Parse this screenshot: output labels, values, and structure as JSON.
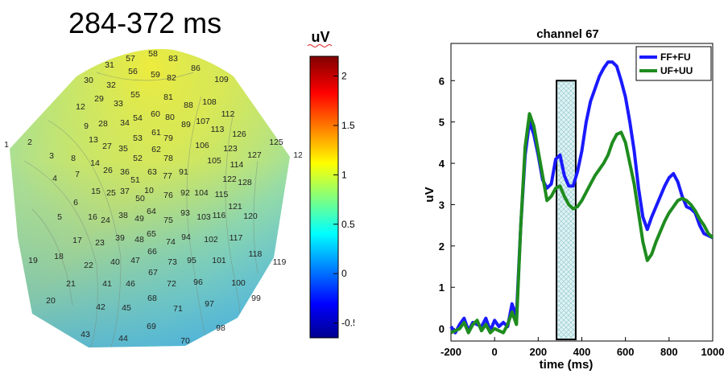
{
  "map_title": "284-372 ms",
  "colorbar": {
    "unit": "uV",
    "ticks": [
      "2",
      "1.5",
      "1",
      "0.5",
      "0",
      "-0.5"
    ],
    "tick_values": [
      2,
      1.5,
      1,
      0.5,
      0,
      -0.5
    ],
    "range": [
      -0.65,
      2.2
    ]
  },
  "electrodes": [
    {
      "label": "57"
    },
    {
      "label": "58"
    },
    {
      "label": "83"
    },
    {
      "label": "86"
    },
    {
      "label": "31"
    },
    {
      "label": "56"
    },
    {
      "label": "59"
    },
    {
      "label": "82"
    },
    {
      "label": "109"
    },
    {
      "label": "30"
    },
    {
      "label": "32"
    },
    {
      "label": "55"
    },
    {
      "label": "29"
    },
    {
      "label": "33"
    },
    {
      "label": "81"
    },
    {
      "label": "108"
    },
    {
      "label": "88"
    },
    {
      "label": "12"
    },
    {
      "label": "60"
    },
    {
      "label": "54"
    },
    {
      "label": "112"
    },
    {
      "label": "28"
    },
    {
      "label": "34"
    },
    {
      "label": "80"
    },
    {
      "label": "89"
    },
    {
      "label": "107"
    },
    {
      "label": "113"
    },
    {
      "label": "126"
    },
    {
      "label": "9"
    },
    {
      "label": "61"
    },
    {
      "label": "53"
    },
    {
      "label": "79"
    },
    {
      "label": "13"
    },
    {
      "label": "27"
    },
    {
      "label": "2"
    },
    {
      "label": "1"
    },
    {
      "label": "35"
    },
    {
      "label": "62"
    },
    {
      "label": "106"
    },
    {
      "label": "123"
    },
    {
      "label": "125"
    },
    {
      "label": "124"
    },
    {
      "label": "3"
    },
    {
      "label": "8"
    },
    {
      "label": "52"
    },
    {
      "label": "127"
    },
    {
      "label": "78"
    },
    {
      "label": "14"
    },
    {
      "label": "105"
    },
    {
      "label": "114"
    },
    {
      "label": "7"
    },
    {
      "label": "4"
    },
    {
      "label": "26"
    },
    {
      "label": "36"
    },
    {
      "label": "63"
    },
    {
      "label": "91"
    },
    {
      "label": "77"
    },
    {
      "label": "51"
    },
    {
      "label": "122"
    },
    {
      "label": "128"
    },
    {
      "label": "15"
    },
    {
      "label": "25"
    },
    {
      "label": "37"
    },
    {
      "label": "10"
    },
    {
      "label": "76"
    },
    {
      "label": "92"
    },
    {
      "label": "104"
    },
    {
      "label": "115"
    },
    {
      "label": "6"
    },
    {
      "label": "50"
    },
    {
      "label": "121"
    },
    {
      "label": "64"
    },
    {
      "label": "93"
    },
    {
      "label": "16"
    },
    {
      "label": "24"
    },
    {
      "label": "38"
    },
    {
      "label": "103"
    },
    {
      "label": "116"
    },
    {
      "label": "120"
    },
    {
      "label": "5"
    },
    {
      "label": "49"
    },
    {
      "label": "75"
    },
    {
      "label": "17"
    },
    {
      "label": "23"
    },
    {
      "label": "39"
    },
    {
      "label": "48"
    },
    {
      "label": "65"
    },
    {
      "label": "94"
    },
    {
      "label": "102"
    },
    {
      "label": "117"
    },
    {
      "label": "74"
    },
    {
      "label": "18"
    },
    {
      "label": "22"
    },
    {
      "label": "40"
    },
    {
      "label": "47"
    },
    {
      "label": "66"
    },
    {
      "label": "95"
    },
    {
      "label": "101"
    },
    {
      "label": "118"
    },
    {
      "label": "119"
    },
    {
      "label": "73"
    },
    {
      "label": "19"
    },
    {
      "label": "41"
    },
    {
      "label": "46"
    },
    {
      "label": "67"
    },
    {
      "label": "72"
    },
    {
      "label": "96"
    },
    {
      "label": "100"
    },
    {
      "label": "21"
    },
    {
      "label": "68"
    },
    {
      "label": "97"
    },
    {
      "label": "99"
    },
    {
      "label": "20"
    },
    {
      "label": "42"
    },
    {
      "label": "45"
    },
    {
      "label": "71"
    },
    {
      "label": "69"
    },
    {
      "label": "98"
    },
    {
      "label": "43"
    },
    {
      "label": "44"
    },
    {
      "label": "70"
    }
  ],
  "chart_data": {
    "type": "line",
    "title": "channel 67",
    "xlabel": "time (ms)",
    "ylabel": "uV",
    "xlim": [
      -200,
      1000
    ],
    "ylim": [
      -0.3,
      6.9
    ],
    "xticks": [
      -200,
      0,
      200,
      400,
      600,
      800,
      1000
    ],
    "yticks": [
      0,
      1,
      2,
      3,
      4,
      5,
      6
    ],
    "legend_position": "top-right",
    "highlight_window": [
      284,
      372
    ],
    "series": [
      {
        "name": "FF+FU",
        "color": "#1a1aff",
        "x": [
          -200,
          -180,
          -160,
          -140,
          -120,
          -100,
          -80,
          -60,
          -40,
          -20,
          0,
          20,
          40,
          60,
          80,
          100,
          120,
          140,
          160,
          180,
          200,
          220,
          240,
          260,
          280,
          300,
          320,
          340,
          360,
          380,
          400,
          420,
          440,
          460,
          480,
          500,
          520,
          540,
          560,
          580,
          600,
          620,
          640,
          660,
          680,
          700,
          720,
          740,
          760,
          780,
          800,
          820,
          840,
          860,
          880,
          900,
          920,
          940,
          960,
          980,
          1000
        ],
        "y": [
          0.05,
          -0.1,
          0.1,
          0.25,
          -0.05,
          0.15,
          0.1,
          0.05,
          0.25,
          -0.05,
          0.2,
          0.05,
          0.15,
          0.05,
          0.6,
          0.3,
          2.5,
          4.2,
          5.0,
          4.7,
          4.2,
          3.6,
          3.4,
          3.5,
          4.1,
          4.2,
          3.7,
          3.45,
          3.45,
          3.8,
          4.3,
          5.0,
          5.5,
          5.8,
          6.1,
          6.3,
          6.45,
          6.45,
          6.35,
          6.0,
          5.6,
          5.0,
          4.3,
          3.4,
          2.7,
          2.4,
          2.7,
          2.95,
          3.2,
          3.45,
          3.65,
          3.75,
          3.55,
          3.2,
          2.95,
          2.9,
          2.8,
          2.5,
          2.3,
          2.25,
          2.2
        ]
      },
      {
        "name": "UF+UU",
        "color": "#1e8c1e",
        "x": [
          -200,
          -180,
          -160,
          -140,
          -120,
          -100,
          -80,
          -60,
          -40,
          -20,
          0,
          20,
          40,
          60,
          80,
          100,
          120,
          140,
          160,
          180,
          200,
          220,
          240,
          260,
          280,
          300,
          320,
          340,
          360,
          380,
          400,
          420,
          440,
          460,
          480,
          500,
          520,
          540,
          560,
          580,
          600,
          620,
          640,
          660,
          680,
          700,
          720,
          740,
          760,
          780,
          800,
          820,
          840,
          860,
          880,
          900,
          920,
          940,
          960,
          980,
          1000
        ],
        "y": [
          -0.1,
          -0.05,
          0.0,
          0.15,
          -0.1,
          0.1,
          0.2,
          -0.05,
          0.1,
          -0.1,
          0.0,
          -0.05,
          -0.1,
          0.1,
          0.4,
          0.1,
          2.5,
          4.4,
          5.2,
          4.9,
          4.3,
          3.7,
          3.1,
          3.2,
          3.4,
          3.45,
          3.2,
          3.0,
          2.9,
          2.95,
          3.1,
          3.3,
          3.5,
          3.7,
          3.85,
          4.0,
          4.2,
          4.5,
          4.7,
          4.75,
          4.5,
          4.0,
          3.5,
          2.8,
          2.1,
          1.65,
          1.8,
          2.1,
          2.35,
          2.6,
          2.8,
          2.95,
          3.1,
          3.15,
          3.1,
          3.0,
          2.85,
          2.65,
          2.5,
          2.3,
          2.2
        ]
      }
    ]
  }
}
